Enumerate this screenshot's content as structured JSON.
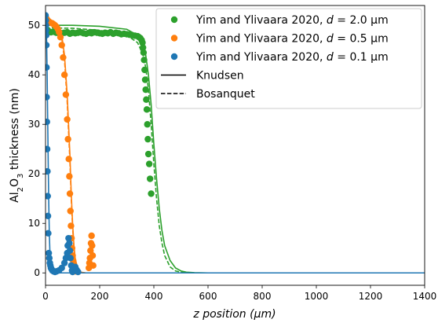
{
  "chart_data": {
    "type": "scatter",
    "title": "",
    "xlabel": "z position (μm)",
    "ylabel": "Al2O3 thickness (nm)",
    "xlim": [
      0,
      1400
    ],
    "ylim": [
      -2.5,
      54
    ],
    "xticks": [
      0,
      200,
      400,
      600,
      800,
      1000,
      1200,
      1400
    ],
    "yticks": [
      0,
      10,
      20,
      30,
      40,
      50
    ],
    "grid": false,
    "legend_position": "top-right",
    "legend": [
      {
        "label": "Yim and Ylivaara 2020, d = 2.0 μm",
        "color": "#2ca02c",
        "kind": "marker"
      },
      {
        "label": "Yim and Ylivaara 2020, d = 0.5 μm",
        "color": "#ff7f0e",
        "kind": "marker"
      },
      {
        "label": "Yim and Ylivaara 2020, d = 0.1 μm",
        "color": "#1f77b4",
        "kind": "marker"
      },
      {
        "label": "Knudsen",
        "color": "#000000",
        "kind": "solid-line"
      },
      {
        "label": "Bosanquet",
        "color": "#000000",
        "kind": "dashed-line"
      }
    ],
    "series": [
      {
        "name": "Yim and Ylivaara 2020, d = 2.0 μm",
        "kind": "scatter",
        "color": "#2ca02c",
        "x": [
          2,
          6,
          12,
          20,
          30,
          40,
          50,
          60,
          70,
          80,
          90,
          100,
          110,
          120,
          130,
          140,
          150,
          160,
          170,
          180,
          190,
          200,
          210,
          220,
          230,
          240,
          250,
          260,
          270,
          280,
          290,
          300,
          310,
          320,
          330,
          340,
          345,
          350,
          355,
          358,
          360,
          362,
          364,
          366,
          368,
          370,
          372,
          374,
          376,
          378,
          380,
          383,
          386,
          390
        ],
        "y": [
          48.5,
          49.0,
          48.8,
          48.6,
          48.7,
          48.5,
          48.6,
          48.4,
          48.5,
          48.6,
          48.3,
          48.5,
          48.4,
          48.5,
          48.6,
          48.4,
          48.3,
          48.5,
          48.4,
          48.6,
          48.5,
          48.4,
          48.3,
          48.5,
          48.4,
          48.6,
          48.3,
          48.5,
          48.4,
          48.2,
          48.3,
          48.2,
          48.1,
          48.0,
          47.9,
          47.8,
          47.6,
          47.4,
          47.0,
          46.5,
          45.5,
          44.5,
          43.0,
          41.0,
          39.0,
          37.0,
          35.0,
          33.0,
          30.0,
          27.0,
          24.0,
          22.0,
          19.0,
          16.0
        ]
      },
      {
        "name": "Yim and Ylivaara 2020, d = 0.5 μm",
        "kind": "scatter",
        "color": "#ff7f0e",
        "x": [
          2,
          5,
          8,
          12,
          16,
          20,
          25,
          30,
          35,
          40,
          45,
          50,
          55,
          60,
          65,
          70,
          75,
          80,
          83,
          86,
          88,
          90,
          92,
          94,
          96,
          98,
          100,
          102,
          104,
          106,
          108,
          110,
          112,
          160,
          162,
          164,
          166,
          168,
          170,
          172,
          174,
          176
        ],
        "y": [
          51.5,
          51.2,
          51.0,
          50.8,
          50.6,
          50.5,
          50.4,
          50.2,
          50.0,
          49.7,
          49.3,
          48.6,
          47.6,
          46.0,
          43.5,
          40.0,
          36.0,
          31.0,
          27.0,
          23.0,
          19.5,
          16.0,
          12.5,
          9.5,
          7.0,
          5.0,
          3.5,
          2.5,
          1.8,
          1.3,
          1.0,
          0.6,
          0.3,
          1.0,
          2.0,
          3.0,
          4.5,
          6.0,
          7.5,
          5.5,
          3.5,
          1.5
        ]
      },
      {
        "name": "Yim and Ylivaara 2020, d = 0.1 μm",
        "kind": "scatter",
        "color": "#1f77b4",
        "x": [
          0,
          1,
          1.5,
          2,
          2.5,
          3,
          3.5,
          4,
          5,
          6,
          7,
          8,
          9,
          10,
          12,
          14,
          16,
          18,
          20,
          22,
          25,
          30,
          35,
          40,
          50,
          60,
          70,
          75,
          80,
          82,
          85,
          88,
          90,
          92,
          95,
          98,
          100,
          105,
          110,
          115,
          120
        ],
        "y": [
          52,
          51,
          50,
          49,
          48,
          46,
          41.5,
          35.5,
          30.5,
          25,
          20.5,
          15.5,
          11.5,
          8,
          4,
          3,
          2,
          1.5,
          1,
          0.8,
          0.5,
          0.3,
          0.2,
          0.3,
          0.5,
          1.0,
          2.0,
          3.0,
          4.0,
          5.5,
          7.0,
          6.0,
          4.5,
          3.0,
          1.5,
          0.5,
          0.2,
          0.8,
          1.2,
          0.6,
          0.2
        ]
      },
      {
        "name": "Knudsen (d = 2.0 μm)",
        "kind": "line",
        "style": "solid",
        "color": "#2ca02c",
        "x": [
          0,
          100,
          200,
          300,
          340,
          360,
          370,
          380,
          390,
          400,
          410,
          420,
          430,
          440,
          460,
          480,
          500,
          520,
          550,
          600,
          700,
          1400
        ],
        "y": [
          50,
          50,
          49.8,
          49.2,
          48.0,
          46.0,
          44.0,
          40.0,
          34.0,
          26.0,
          19.0,
          13.0,
          8.5,
          5.5,
          2.5,
          1.0,
          0.4,
          0.15,
          0.05,
          0,
          0,
          0
        ]
      },
      {
        "name": "Bosanquet (d = 2.0 μm)",
        "kind": "line",
        "style": "dashed",
        "color": "#2ca02c",
        "x": [
          0,
          100,
          200,
          300,
          340,
          360,
          370,
          380,
          390,
          400,
          410,
          420,
          430,
          440,
          460,
          480,
          500,
          520,
          550,
          600,
          700,
          1400
        ],
        "y": [
          49.5,
          49.4,
          49.0,
          48.0,
          46.5,
          44.0,
          41.5,
          37.0,
          30.0,
          22.0,
          15.0,
          9.5,
          6.0,
          3.5,
          1.2,
          0.4,
          0.15,
          0.05,
          0,
          0,
          0,
          0
        ]
      },
      {
        "name": "Knudsen (d = 0.5 μm)",
        "kind": "line",
        "style": "solid",
        "color": "#ff7f0e",
        "x": [
          0,
          20,
          40,
          60,
          70,
          80,
          90,
          95,
          100,
          105,
          110,
          120,
          130,
          150,
          200,
          1400
        ],
        "y": [
          51,
          50.6,
          50.0,
          48.0,
          44.0,
          36.0,
          24.0,
          16.0,
          10.0,
          5.5,
          2.8,
          0.7,
          0.15,
          0,
          0,
          0
        ]
      },
      {
        "name": "Bosanquet (d = 0.5 μm)",
        "kind": "line",
        "style": "dashed",
        "color": "#ff7f0e",
        "x": [
          0,
          20,
          40,
          60,
          70,
          80,
          90,
          95,
          100,
          105,
          110,
          120,
          130,
          150,
          200,
          1400
        ],
        "y": [
          50.8,
          50.4,
          49.6,
          47.4,
          43.0,
          34.5,
          22.5,
          14.8,
          9.0,
          4.8,
          2.3,
          0.5,
          0.1,
          0,
          0,
          0
        ]
      },
      {
        "name": "Knudsen (d = 0.1 μm)",
        "kind": "line",
        "style": "solid",
        "color": "#1f77b4",
        "x": [
          0,
          1,
          2,
          4,
          6,
          8,
          10,
          12,
          14,
          16,
          18,
          20,
          22,
          25,
          30,
          40,
          1400
        ],
        "y": [
          52,
          51,
          50,
          47,
          40,
          31,
          22,
          14,
          8,
          4.5,
          2.5,
          1.3,
          0.6,
          0.2,
          0,
          0,
          0
        ]
      }
    ]
  }
}
